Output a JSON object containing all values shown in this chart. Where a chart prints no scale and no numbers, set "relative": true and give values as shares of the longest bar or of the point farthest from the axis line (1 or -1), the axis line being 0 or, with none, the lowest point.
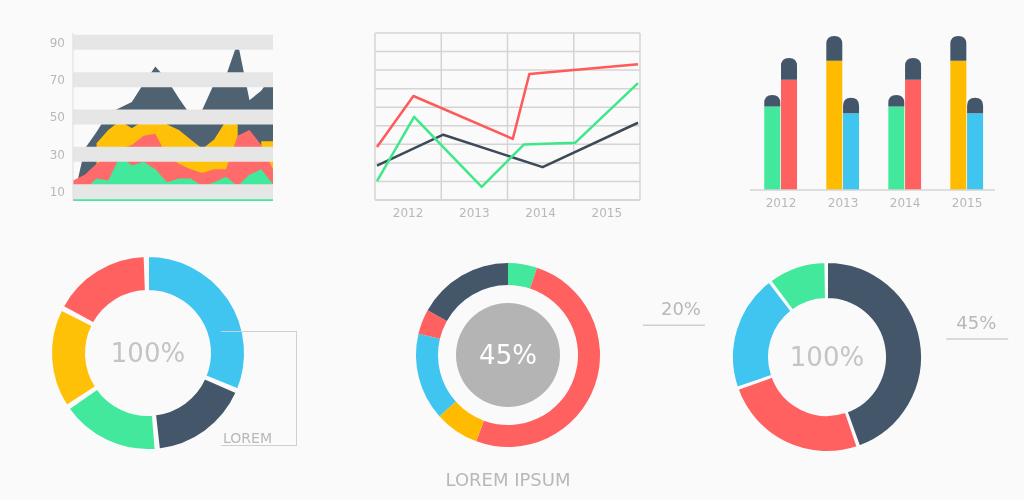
{
  "chart_data": [
    {
      "type": "area",
      "categories": [
        null,
        null,
        null,
        null,
        null,
        null,
        null,
        null,
        null,
        null,
        null,
        null,
        null,
        null,
        null,
        null,
        null,
        null
      ],
      "ylim": [
        5,
        95
      ],
      "yticks": [
        10,
        30,
        50,
        70,
        90
      ],
      "grid": "y",
      "tick_labels": "y",
      "series": [
        {
          "color": "#4f6272",
          "values": [
            5,
            33,
            42,
            52,
            55,
            58,
            68,
            77,
            70,
            60,
            51,
            54,
            68,
            72,
            90,
            59,
            64,
            73
          ]
        },
        {
          "color": "#ffc107",
          "values": [
            null,
            null,
            36,
            43,
            48,
            44,
            48,
            52,
            46,
            43,
            38,
            33,
            38,
            48,
            46,
            null,
            37,
            37
          ]
        },
        {
          "color": "#ff6b6b",
          "values": [
            16,
            19,
            25,
            29,
            33,
            35,
            40,
            41,
            29,
            25,
            22,
            20,
            22,
            22,
            40,
            43,
            35,
            22
          ]
        },
        {
          "color": "#42e89c",
          "values": [
            5,
            11,
            17,
            16,
            29,
            24,
            26,
            22,
            15,
            17,
            17,
            13,
            15,
            18,
            13,
            19,
            22,
            14
          ]
        }
      ]
    },
    {
      "type": "line",
      "relative": true,
      "grid": true,
      "tick_labels": "x",
      "xlim": [
        2011.5,
        2015.5
      ],
      "xticks": [
        {
          "value": 2011.5,
          "label": null
        },
        2012,
        {
          "value": 2012.5,
          "label": null
        },
        2013,
        {
          "value": 2013.5,
          "label": null
        },
        2014,
        {
          "value": 2014.5,
          "label": null
        },
        2015,
        {
          "value": 2015.5,
          "label": null
        }
      ],
      "series": [
        {
          "color": "#3d4a58",
          "x": [
            2011.53,
            2012.53,
            2014.03,
            2015.47
          ],
          "values": [
            0.254,
            0.481,
            0.242,
            0.569
          ]
        },
        {
          "color": "#3ee88a",
          "x": [
            2011.53,
            2012.09,
            2013.11,
            2013.75,
            2014.52,
            2015.47
          ],
          "values": [
            0.139,
            0.612,
            0.096,
            0.409,
            0.421,
            0.861
          ]
        },
        {
          "color": "#ff5a5a",
          "x": [
            2011.53,
            2012.08,
            2013.58,
            2013.83,
            2015.47
          ],
          "values": [
            0.39,
            0.766,
            0.45,
            0.928,
            1
          ]
        }
      ]
    },
    {
      "type": "bar",
      "relative": true,
      "stacked": true,
      "tick_labels": "x",
      "xlim": [
        2011.5,
        2015.45
      ],
      "xticks": [
        2012,
        2013,
        2014,
        2015
      ],
      "series": [
        {
          "x": [
            2011.865,
            2012.135,
            2012.865,
            2013.135,
            2013.865,
            2014.135,
            2014.865,
            2015.135
          ],
          "colors": [
            "#42e89c",
            "#ff6060",
            "#ffbb00",
            "#40c4f0",
            "#42e89c",
            "#ff6060",
            "#ffbb00",
            "#40c4f0"
          ],
          "values": [
            0.542,
            0.716,
            0.84,
            0.499,
            0.542,
            0.716,
            0.84,
            0.499
          ]
        },
        {
          "x": [
            2011.865,
            2012.135,
            2012.865,
            2013.135,
            2013.865,
            2014.135,
            2014.865,
            2015.135
          ],
          "color": "#44566a",
          "values": [
            0.076,
            0.142,
            0.16,
            0.101,
            0.076,
            0.142,
            0.16,
            0.101
          ]
        }
      ]
    },
    {
      "type": "donut",
      "categories": [
        null,
        null,
        null,
        null,
        null
      ],
      "values": [
        32,
        17,
        17,
        17,
        17
      ],
      "colors": [
        "#40c4f0",
        "#44566a",
        "#42e89c",
        "#ffc107",
        "#ff6060"
      ],
      "annotations": [
        "100%",
        "LOREM"
      ]
    },
    {
      "type": "donut",
      "categories": [
        null,
        null,
        null,
        null,
        null,
        null
      ],
      "values": [
        5.1,
        50.5,
        7.8,
        15.3,
        4.4,
        16.9
      ],
      "colors": [
        "#42e89c",
        "#ff6060",
        "#ffbb00",
        "#40c4f0",
        "#ff6060",
        "#44566a"
      ],
      "annotations": [
        "45%",
        "LOREM IPSUM"
      ]
    },
    {
      "type": "donut",
      "categories": [
        null,
        null,
        null,
        null
      ],
      "values": [
        45,
        25,
        20,
        10
      ],
      "colors": [
        "#44566a",
        "#ff6060",
        "#40c4f0",
        "#42e89c"
      ],
      "value_labels": [
        "45%",
        null,
        "20%",
        null
      ],
      "annotations": [
        "100%"
      ]
    }
  ]
}
